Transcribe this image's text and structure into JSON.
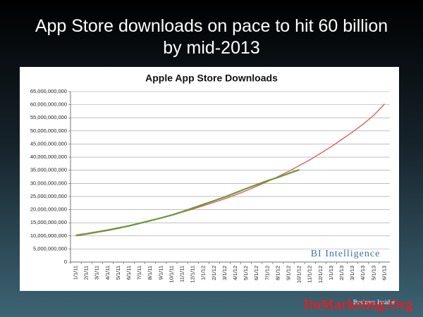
{
  "chart_data": {
    "type": "line",
    "headline": "App Store downloads on pace to hit 60 billion by mid-2013",
    "title": "Apple App Store Downloads",
    "categories": [
      "1/1/11",
      "2/1/11",
      "3/1/11",
      "4/1/11",
      "5/1/11",
      "6/1/11",
      "7/1/11",
      "8/1/11",
      "9/1/11",
      "10/1/11",
      "11/1/11",
      "12/1/11",
      "1/1/12",
      "2/1/12",
      "3/1/12",
      "4/1/12",
      "5/1/12",
      "6/1/12",
      "7/1/12",
      "8/1/12",
      "9/1/12",
      "10/1/12",
      "11/1/12",
      "12/1/12",
      "1/1/13",
      "2/1/13",
      "3/1/13",
      "4/1/13",
      "5/1/13",
      "6/1/13"
    ],
    "series": [
      {
        "color": "#e0605a",
        "values": [
          10000000000,
          10600000000,
          11300000000,
          12000000000,
          12800000000,
          13700000000,
          14700000000,
          15700000000,
          16800000000,
          17800000000,
          19000000000,
          20200000000,
          21500000000,
          22800000000,
          24100000000,
          25600000000,
          27200000000,
          28900000000,
          30700000000,
          32600000000,
          34600000000,
          36800000000,
          39000000000,
          41500000000,
          44000000000,
          46800000000,
          49600000000,
          52600000000,
          56000000000,
          60300000000
        ]
      },
      {
        "color": "#6a9a3a",
        "values": [
          10200000000,
          10800000000,
          11500000000,
          12200000000,
          13000000000,
          13800000000,
          14800000000,
          15800000000,
          16800000000,
          17900000000,
          19200000000,
          20600000000,
          22000000000,
          23400000000,
          24800000000,
          26400000000,
          28000000000,
          29500000000,
          31000000000,
          32300000000,
          33800000000,
          35200000000,
          null,
          null,
          null,
          null,
          null,
          null,
          null,
          null
        ]
      }
    ],
    "ylim": [
      0,
      65000000000
    ],
    "yticks": [
      0,
      {
        "value": 5000000000,
        "label": "5,000,000,000"
      },
      {
        "value": 10000000000,
        "label": "10,000,000,000"
      },
      {
        "value": 15000000000,
        "label": "15,000,000,000"
      },
      {
        "value": 20000000000,
        "label": "20,000,000,000"
      },
      {
        "value": 25000000000,
        "label": "25,000,000,000"
      },
      {
        "value": 30000000000,
        "label": "30,000,000,000"
      },
      {
        "value": 35000000000,
        "label": "35,000,000,000"
      },
      {
        "value": 40000000000,
        "label": "40,000,000,000"
      },
      {
        "value": 45000000000,
        "label": "45,000,000,000"
      },
      {
        "value": 50000000000,
        "label": "50,000,000,000"
      },
      {
        "value": 55000000000,
        "label": "55,000,000,000"
      },
      {
        "value": 60000000000,
        "label": "60,000,000,000"
      },
      {
        "value": 65000000000,
        "label": "65,000,000,000"
      }
    ],
    "grid": true,
    "annotations": [
      "BI Intelligence",
      "Business Insider",
      "DoMarketing.Org"
    ]
  }
}
